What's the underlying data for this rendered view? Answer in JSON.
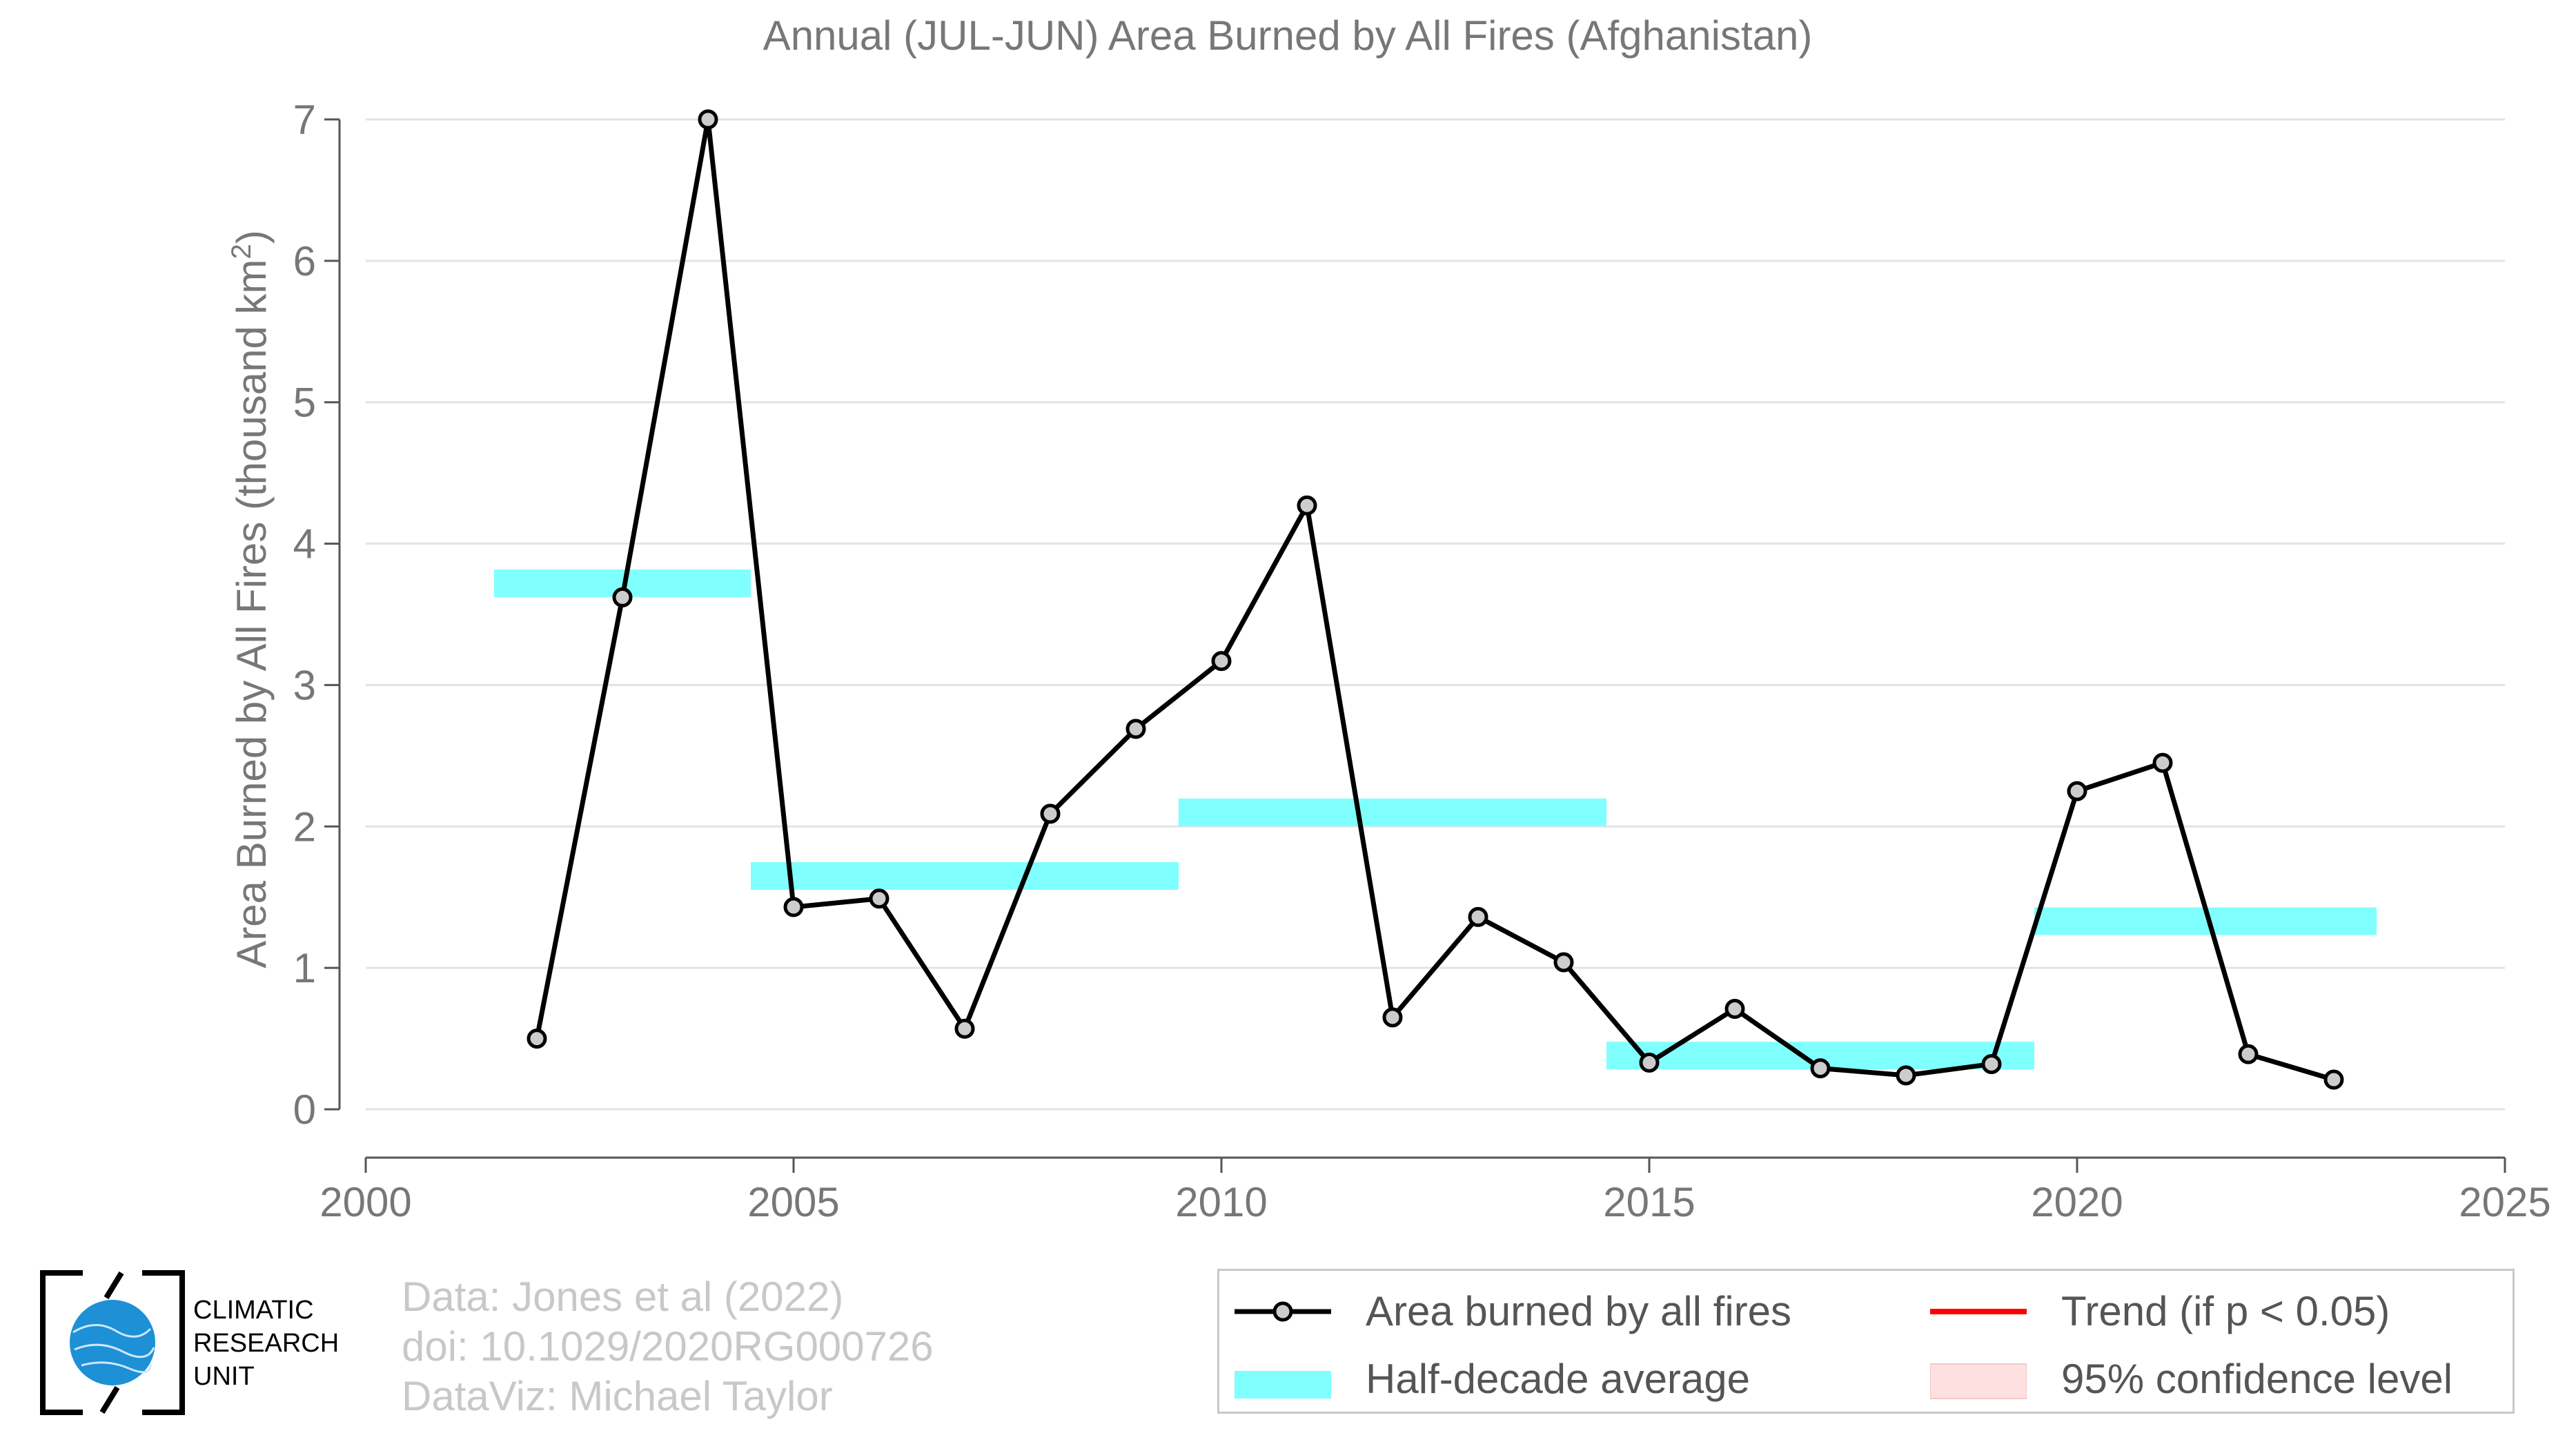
{
  "chart_data": {
    "type": "line",
    "title": "Annual (JUL-JUN) Area Burned by All Fires (Afghanistan)",
    "xlabel": "",
    "ylabel": "Area Burned by All Fires (thousand km",
    "ylabel_sup": "2",
    "ylabel_end": ")",
    "xlim": [
      2000,
      2025
    ],
    "ylim": [
      0,
      7
    ],
    "x_ticks": [
      2000,
      2005,
      2010,
      2015,
      2020,
      2025
    ],
    "y_ticks": [
      0,
      1,
      2,
      3,
      4,
      5,
      6,
      7
    ],
    "grid": "horizontal",
    "series": [
      {
        "name": "Area burned by all fires",
        "color": "#000000",
        "x": [
          2002,
          2003,
          2004,
          2005,
          2006,
          2007,
          2008,
          2009,
          2010,
          2011,
          2012,
          2013,
          2014,
          2015,
          2016,
          2017,
          2018,
          2019,
          2020,
          2021,
          2022,
          2023
        ],
        "y": [
          0.5,
          3.62,
          7.0,
          1.43,
          1.49,
          0.57,
          2.09,
          2.69,
          3.17,
          4.27,
          0.65,
          1.36,
          1.04,
          0.33,
          0.71,
          0.29,
          0.24,
          0.32,
          2.25,
          2.45,
          0.39,
          0.21
        ]
      }
    ],
    "half_decade_averages": {
      "name": "Half-decade average",
      "color": "#80ffff",
      "segments": [
        {
          "x_start": 2001.5,
          "x_end": 2004.5,
          "y": 3.72
        },
        {
          "x_start": 2004.5,
          "x_end": 2009.5,
          "y": 1.65
        },
        {
          "x_start": 2009.5,
          "x_end": 2014.5,
          "y": 2.1
        },
        {
          "x_start": 2014.5,
          "x_end": 2019.5,
          "y": 0.38
        },
        {
          "x_start": 2019.5,
          "x_end": 2023.5,
          "y": 1.33
        }
      ]
    },
    "legend_position": "bottom-right",
    "legend": [
      {
        "label": "Area burned by all fires",
        "type": "line-marker",
        "color": "#000000"
      },
      {
        "label": "Half-decade average",
        "type": "band",
        "color": "#80ffff"
      },
      {
        "label": "Trend (if p < 0.05)",
        "type": "line",
        "color": "#ff0000"
      },
      {
        "label": "95% confidence level",
        "type": "band",
        "color": "#ffe0e0"
      }
    ]
  },
  "footer": {
    "line1": "Data: Jones et al (2022)",
    "line2": "doi: 10.1029/2020RG000726",
    "line3": "DataViz: Michael Taylor"
  },
  "logo": {
    "line1": "CLIMATIC",
    "line2": "RESEARCH",
    "line3": "UNIT"
  }
}
